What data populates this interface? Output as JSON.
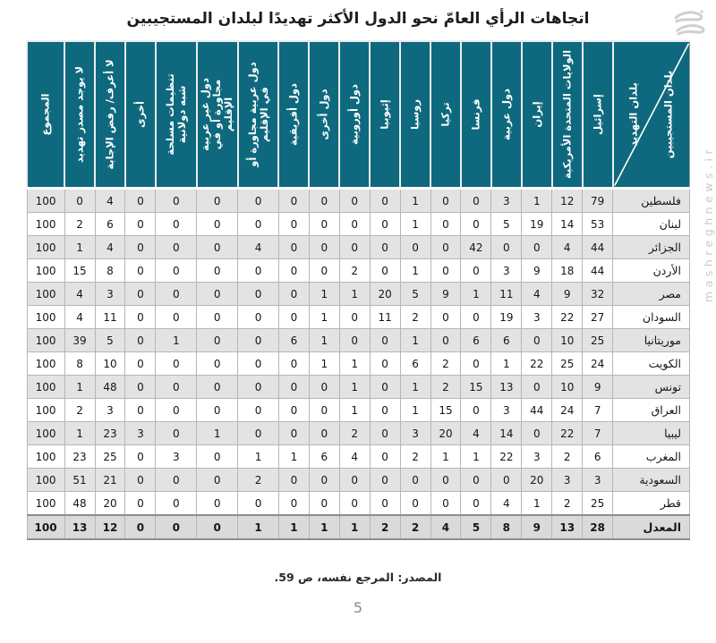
{
  "title": "اتجاهات الرأي العامّ نحو الدول الأكثر تهديدًا لبلدان المستجيبين",
  "watermark": {
    "site": "mashreghnews.ir"
  },
  "source": "المصدر: المرجع نفسه، ص 59.",
  "page_number": "5",
  "colors": {
    "header_teal": "#0e697e",
    "row_alt": "#e3e3e3",
    "row_white": "#ffffff",
    "total_row_bg": "#dadada",
    "watermark_gray": "#c7cbc8"
  },
  "chart_data": {
    "type": "table",
    "title": "اتجاهات الرأي العامّ نحو الدول الأكثر تهديدًا لبلدان المستجيبين",
    "corner": {
      "top": "بلدان التهديد",
      "bottom": "بلدان المستجيبين"
    },
    "columns": [
      "إسرائيل",
      "الولايات المتحدة الأمريكية",
      "إيران",
      "دول عربية",
      "فرنسا",
      "تركيا",
      "روسيا",
      "إثيوبيا",
      "دول أوروبية",
      "دول أخرى",
      "دول أفريقية",
      "دول عربية مجاورة أو في الإقليم",
      "دول غير عربية مجاورة أو في الإقليم",
      "تنظيمات مسلحة شبه دولانية",
      "أخرى",
      "لا أعرف/ رفض الإجابة",
      "لا يوجد مصدر تهديد",
      "المجموع"
    ],
    "rows": [
      {
        "label": "فلسطين",
        "values": [
          79,
          12,
          1,
          3,
          0,
          0,
          1,
          0,
          0,
          0,
          0,
          0,
          0,
          0,
          0,
          4,
          0,
          100
        ]
      },
      {
        "label": "لبنان",
        "values": [
          53,
          14,
          19,
          5,
          0,
          0,
          1,
          0,
          0,
          0,
          0,
          0,
          0,
          0,
          0,
          6,
          2,
          100
        ]
      },
      {
        "label": "الجزائر",
        "values": [
          44,
          4,
          0,
          0,
          42,
          0,
          0,
          0,
          0,
          0,
          0,
          4,
          0,
          0,
          0,
          4,
          1,
          100
        ]
      },
      {
        "label": "الأردن",
        "values": [
          44,
          18,
          9,
          3,
          0,
          0,
          1,
          0,
          2,
          0,
          0,
          0,
          0,
          0,
          0,
          8,
          15,
          100
        ]
      },
      {
        "label": "مصر",
        "values": [
          32,
          9,
          4,
          11,
          1,
          9,
          5,
          20,
          1,
          1,
          0,
          0,
          0,
          0,
          0,
          3,
          4,
          100
        ]
      },
      {
        "label": "السودان",
        "values": [
          27,
          22,
          3,
          19,
          0,
          0,
          2,
          11,
          0,
          1,
          0,
          0,
          0,
          0,
          0,
          11,
          4,
          100
        ]
      },
      {
        "label": "موريتانيا",
        "values": [
          25,
          10,
          0,
          6,
          6,
          0,
          1,
          0,
          0,
          1,
          6,
          0,
          0,
          1,
          0,
          5,
          39,
          100
        ]
      },
      {
        "label": "الكويت",
        "values": [
          24,
          25,
          22,
          1,
          0,
          2,
          6,
          0,
          1,
          1,
          0,
          0,
          0,
          0,
          0,
          10,
          8,
          100
        ]
      },
      {
        "label": "تونس",
        "values": [
          9,
          10,
          0,
          13,
          15,
          2,
          1,
          0,
          1,
          0,
          0,
          0,
          0,
          0,
          0,
          48,
          1,
          100
        ]
      },
      {
        "label": "العراق",
        "values": [
          7,
          24,
          44,
          3,
          0,
          15,
          1,
          0,
          1,
          0,
          0,
          0,
          0,
          0,
          0,
          3,
          2,
          100
        ]
      },
      {
        "label": "ليبيا",
        "values": [
          7,
          22,
          0,
          14,
          4,
          20,
          3,
          0,
          2,
          0,
          0,
          0,
          1,
          0,
          3,
          23,
          1,
          100
        ]
      },
      {
        "label": "المغرب",
        "values": [
          6,
          2,
          3,
          22,
          1,
          1,
          2,
          0,
          4,
          6,
          1,
          1,
          0,
          3,
          0,
          25,
          23,
          100
        ]
      },
      {
        "label": "السعودية",
        "values": [
          3,
          3,
          20,
          0,
          0,
          0,
          0,
          0,
          0,
          0,
          0,
          2,
          0,
          0,
          0,
          21,
          51,
          100
        ]
      },
      {
        "label": "قطر",
        "values": [
          25,
          2,
          1,
          4,
          0,
          0,
          0,
          0,
          0,
          0,
          0,
          0,
          0,
          0,
          0,
          20,
          48,
          100
        ]
      }
    ],
    "total_row": {
      "label": "المعدل",
      "values": [
        28,
        13,
        9,
        8,
        5,
        4,
        2,
        2,
        1,
        1,
        1,
        1,
        0,
        0,
        0,
        12,
        13,
        100
      ]
    }
  }
}
